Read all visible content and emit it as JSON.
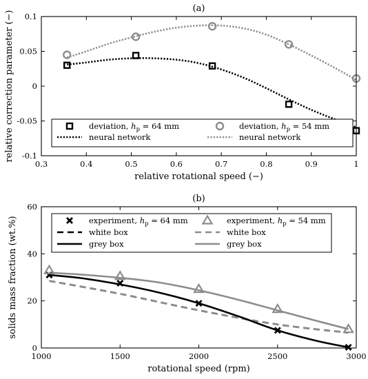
{
  "chart_data": [
    {
      "type": "line",
      "title": "(a)",
      "xlabel": "relative rotational speed (−)",
      "ylabel": "relative correction parameter (−)",
      "xlim": [
        0.3,
        1.0
      ],
      "ylim": [
        -0.1,
        0.1
      ],
      "xticks": [
        "0.3",
        "0.4",
        "0.5",
        "0.6",
        "0.7",
        "0.8",
        "0.9",
        "1"
      ],
      "yticks": [
        "-0.1",
        "-0.05",
        "0",
        "0.05",
        "0.1"
      ],
      "grid": false,
      "legend_position": "bottom",
      "series": [
        {
          "name": "deviation, hp = 64 mm",
          "legend_label": {
            "prefix": "deviation, ",
            "var": "h",
            "sub": "p",
            "suffix": " = 64 mm"
          },
          "kind": "markers",
          "marker": "square",
          "color": "#000000",
          "x": [
            0.357,
            0.51,
            0.68,
            0.85,
            1.0
          ],
          "y": [
            0.03,
            0.044,
            0.029,
            -0.026,
            -0.064
          ]
        },
        {
          "name": "deviation, hp = 54 mm",
          "legend_label": {
            "prefix": "deviation, ",
            "var": "h",
            "sub": "p",
            "suffix": " = 54 mm"
          },
          "kind": "markers",
          "marker": "circle",
          "color": "#8c8c8c",
          "x": [
            0.357,
            0.51,
            0.68,
            0.85,
            1.0
          ],
          "y": [
            0.045,
            0.071,
            0.086,
            0.06,
            0.011
          ]
        },
        {
          "name": "neural network",
          "kind": "line",
          "style": "dotted",
          "color": "#000000",
          "x": [
            0.357,
            0.4,
            0.45,
            0.5,
            0.55,
            0.6,
            0.65,
            0.7,
            0.75,
            0.8,
            0.85,
            0.9,
            0.95,
            1.0
          ],
          "y": [
            0.031,
            0.034,
            0.038,
            0.04,
            0.04,
            0.038,
            0.033,
            0.024,
            0.012,
            -0.003,
            -0.019,
            -0.034,
            -0.047,
            -0.059
          ]
        },
        {
          "name": "neural network",
          "kind": "line",
          "style": "dotted",
          "color": "#8c8c8c",
          "x": [
            0.357,
            0.4,
            0.45,
            0.5,
            0.55,
            0.6,
            0.65,
            0.7,
            0.75,
            0.8,
            0.85,
            0.9,
            0.95,
            1.0
          ],
          "y": [
            0.041,
            0.05,
            0.061,
            0.07,
            0.078,
            0.084,
            0.087,
            0.087,
            0.083,
            0.074,
            0.06,
            0.044,
            0.027,
            0.009
          ]
        }
      ]
    },
    {
      "type": "line",
      "title": "(b)",
      "xlabel": "rotational speed (rpm)",
      "ylabel": "solids mass fraction (wt.%)",
      "xlim": [
        1000,
        3000
      ],
      "ylim": [
        0,
        60
      ],
      "xticks": [
        "1000",
        "1500",
        "2000",
        "2500",
        "3000"
      ],
      "yticks": [
        "0",
        "20",
        "40",
        "60"
      ],
      "grid": false,
      "legend_position": "top",
      "series": [
        {
          "name": "experiment, hp = 64 mm",
          "legend_label": {
            "prefix": "experiment, ",
            "var": "h",
            "sub": "p",
            "suffix": " = 64 mm"
          },
          "kind": "markers",
          "marker": "x",
          "color": "#000000",
          "x": [
            1050,
            1500,
            2000,
            2500,
            2950
          ],
          "y": [
            31,
            27.5,
            19,
            7.5,
            0.3
          ]
        },
        {
          "name": "experiment, hp = 54 mm",
          "legend_label": {
            "prefix": "experiment, ",
            "var": "h",
            "sub": "p",
            "suffix": " = 54 mm"
          },
          "kind": "markers",
          "marker": "triangle",
          "color": "#8c8c8c",
          "x": [
            1050,
            1500,
            2000,
            2500,
            2950
          ],
          "y": [
            33,
            30.5,
            25,
            16.5,
            8
          ]
        },
        {
          "name": "white box",
          "kind": "line",
          "style": "dashed",
          "color": "#000000",
          "x": [
            1050,
            1500,
            2000,
            2500,
            2950
          ],
          "y": [
            28.5,
            23,
            16,
            10,
            6.5
          ]
        },
        {
          "name": "white box",
          "kind": "line",
          "style": "dashed",
          "color": "#8c8c8c",
          "x": [
            1050,
            1500,
            2000,
            2500,
            2950
          ],
          "y": [
            28.5,
            23,
            16,
            10,
            6.5
          ]
        },
        {
          "name": "grey box",
          "kind": "line",
          "style": "solid",
          "color": "#000000",
          "x": [
            1050,
            1250,
            1500,
            1750,
            2000,
            2250,
            2500,
            2750,
            2950
          ],
          "y": [
            31,
            29.7,
            27,
            23.5,
            19,
            13.5,
            7.5,
            3,
            0.3
          ]
        },
        {
          "name": "grey box",
          "kind": "line",
          "style": "solid",
          "color": "#8c8c8c",
          "x": [
            1050,
            1250,
            1500,
            1750,
            2000,
            2250,
            2500,
            2750,
            2950
          ],
          "y": [
            32,
            31.2,
            29.8,
            27.8,
            24.5,
            20.5,
            16,
            11.5,
            8
          ]
        }
      ]
    }
  ]
}
